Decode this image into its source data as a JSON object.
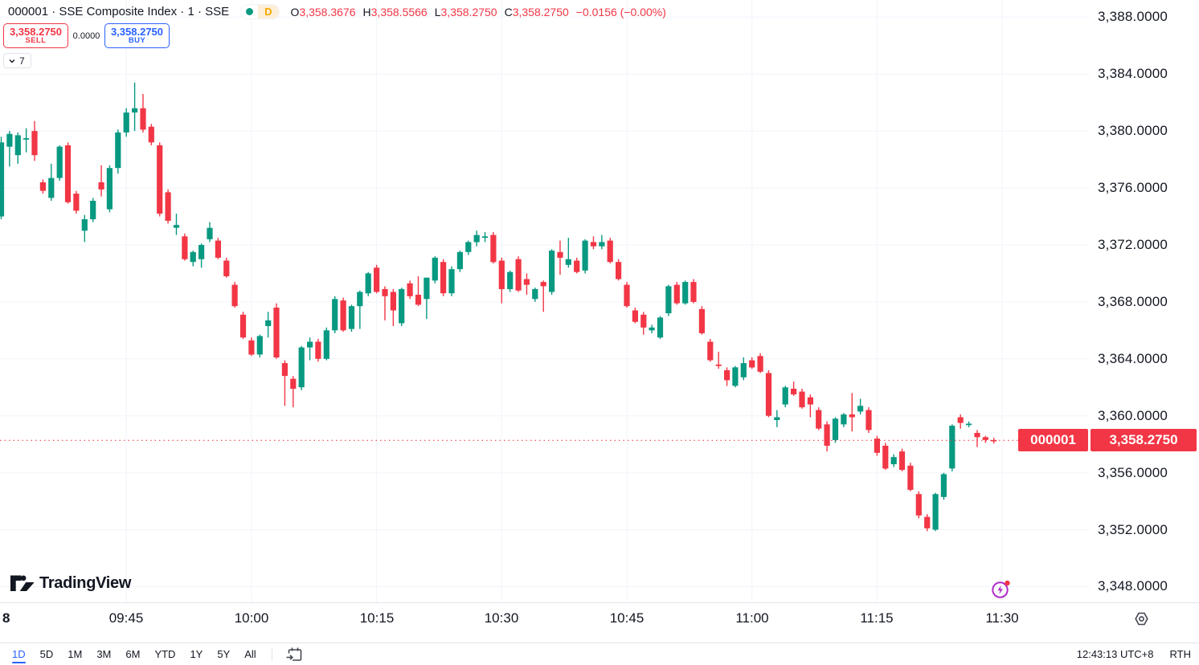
{
  "colors": {
    "up": "#089981",
    "down": "#f23645",
    "grid": "#f0f3fa",
    "accent": "#2962ff",
    "label_bg": "#f23645",
    "badge_orange": "#f7a600"
  },
  "header": {
    "symbol_title": "000001 · SSE Composite Index · 1 · SSE",
    "timeframe_badge": "D",
    "ohlc": {
      "o_label": "O",
      "o_value": "3,358.3676",
      "h_label": "H",
      "h_value": "3,358.5566",
      "l_label": "L",
      "l_value": "3,358.2750",
      "c_label": "C",
      "c_value": "3,358.2750",
      "change": "−0.0156 (−0.00%)"
    },
    "sell_button": {
      "price": "3,358.2750",
      "label": "SELL"
    },
    "spread": "0.0000",
    "buy_button": {
      "price": "3,358.2750",
      "label": "BUY"
    },
    "quantity_dropdown": "7"
  },
  "logo_text": "TradingView",
  "last_price_tag": {
    "symbol": "000001",
    "price": "3,358.2750"
  },
  "time_axis": {
    "date_label": "8"
  },
  "toolbar": {
    "ranges": [
      "1D",
      "5D",
      "1M",
      "3M",
      "6M",
      "YTD",
      "1Y",
      "5Y",
      "All"
    ],
    "active": "1D",
    "clock": "12:43:13 UTC+8",
    "session": "RTH"
  },
  "chart_data": {
    "type": "candlestick",
    "title": "000001 SSE Composite Index, 1 minute",
    "interval": "1m",
    "start_time": "09:30",
    "ylim": [
      3346.9,
      3389.2
    ],
    "grid": true,
    "y_ticks": [
      {
        "v": 3388,
        "label": "3,388.0000"
      },
      {
        "v": 3384,
        "label": "3,384.0000"
      },
      {
        "v": 3380,
        "label": "3,380.0000"
      },
      {
        "v": 3376,
        "label": "3,376.0000"
      },
      {
        "v": 3372,
        "label": "3,372.0000"
      },
      {
        "v": 3368,
        "label": "3,368.0000"
      },
      {
        "v": 3364,
        "label": "3,364.0000"
      },
      {
        "v": 3360,
        "label": "3,360.0000"
      },
      {
        "v": 3356,
        "label": "3,356.0000"
      },
      {
        "v": 3352,
        "label": "3,352.0000"
      },
      {
        "v": 3348,
        "label": "3,348.0000"
      }
    ],
    "x_ticks": [
      {
        "i": 15,
        "label": "09:45"
      },
      {
        "i": 30,
        "label": "10:00"
      },
      {
        "i": 45,
        "label": "10:15"
      },
      {
        "i": 60,
        "label": "10:30"
      },
      {
        "i": 75,
        "label": "10:45"
      },
      {
        "i": 90,
        "label": "11:00"
      },
      {
        "i": 105,
        "label": "11:15"
      },
      {
        "i": 120,
        "label": "11:30"
      }
    ],
    "last_price": 3358.275,
    "candles": [
      [
        3374.0,
        3379.6,
        3373.8,
        3379.2
      ],
      [
        3378.9,
        3380.0,
        3377.5,
        3379.8
      ],
      [
        3378.3,
        3379.9,
        3377.7,
        3379.7
      ],
      [
        3379.4,
        3380.2,
        3378.5,
        3379.5
      ],
      [
        3380.0,
        3380.7,
        3377.9,
        3378.3
      ],
      [
        3376.4,
        3376.6,
        3375.6,
        3375.8
      ],
      [
        3375.3,
        3377.7,
        3375.1,
        3376.7
      ],
      [
        3376.7,
        3379.0,
        3376.5,
        3378.9
      ],
      [
        3379.0,
        3379.2,
        3374.9,
        3375.0
      ],
      [
        3375.6,
        3375.8,
        3374.2,
        3374.4
      ],
      [
        3373.0,
        3374.1,
        3372.2,
        3373.8
      ],
      [
        3373.8,
        3375.3,
        3373.6,
        3375.1
      ],
      [
        3376.4,
        3377.6,
        3375.4,
        3375.9
      ],
      [
        3374.5,
        3377.6,
        3374.3,
        3377.4
      ],
      [
        3377.4,
        3380.1,
        3377.0,
        3379.9
      ],
      [
        3379.9,
        3381.6,
        3379.6,
        3381.3
      ],
      [
        3381.3,
        3383.4,
        3380.0,
        3381.6
      ],
      [
        3381.6,
        3382.6,
        3379.9,
        3380.1
      ],
      [
        3380.3,
        3380.5,
        3379.0,
        3379.2
      ],
      [
        3379.0,
        3379.2,
        3374.0,
        3374.2
      ],
      [
        3375.7,
        3375.9,
        3373.5,
        3373.7
      ],
      [
        3373.2,
        3374.2,
        3372.7,
        3373.4
      ],
      [
        3372.6,
        3372.8,
        3370.9,
        3371.0
      ],
      [
        3370.8,
        3371.6,
        3370.5,
        3371.5
      ],
      [
        3371.0,
        3372.1,
        3370.4,
        3372.0
      ],
      [
        3372.4,
        3373.6,
        3372.2,
        3373.2
      ],
      [
        3372.3,
        3372.5,
        3371.0,
        3371.1
      ],
      [
        3370.9,
        3371.1,
        3369.7,
        3369.8
      ],
      [
        3369.2,
        3369.4,
        3367.6,
        3367.7
      ],
      [
        3367.1,
        3367.3,
        3365.4,
        3365.5
      ],
      [
        3365.3,
        3365.5,
        3364.2,
        3364.3
      ],
      [
        3364.3,
        3365.7,
        3364.1,
        3365.6
      ],
      [
        3366.3,
        3367.3,
        3365.5,
        3366.7
      ],
      [
        3367.6,
        3367.9,
        3364.0,
        3364.1
      ],
      [
        3363.7,
        3363.9,
        3360.7,
        3362.8
      ],
      [
        3362.6,
        3362.8,
        3360.6,
        3361.9
      ],
      [
        3362.0,
        3364.9,
        3361.8,
        3364.8
      ],
      [
        3364.8,
        3365.5,
        3363.9,
        3365.2
      ],
      [
        3365.2,
        3365.4,
        3363.8,
        3364.0
      ],
      [
        3364.0,
        3366.2,
        3363.9,
        3366.0
      ],
      [
        3366.0,
        3368.4,
        3365.8,
        3368.2
      ],
      [
        3368.1,
        3368.3,
        3365.9,
        3366.0
      ],
      [
        3366.1,
        3367.8,
        3365.9,
        3367.7
      ],
      [
        3367.7,
        3368.8,
        3366.1,
        3368.7
      ],
      [
        3368.6,
        3370.1,
        3368.4,
        3370.0
      ],
      [
        3370.4,
        3370.6,
        3368.6,
        3368.7
      ],
      [
        3368.9,
        3369.1,
        3366.7,
        3368.4
      ],
      [
        3368.7,
        3368.9,
        3366.3,
        3367.4
      ],
      [
        3366.5,
        3369.0,
        3366.3,
        3368.9
      ],
      [
        3369.3,
        3369.5,
        3368.2,
        3368.4
      ],
      [
        3368.5,
        3369.8,
        3367.7,
        3367.8
      ],
      [
        3368.2,
        3369.7,
        3366.8,
        3369.7
      ],
      [
        3369.5,
        3371.2,
        3369.3,
        3371.1
      ],
      [
        3370.8,
        3371.0,
        3368.4,
        3368.6
      ],
      [
        3368.6,
        3370.5,
        3368.4,
        3370.3
      ],
      [
        3370.3,
        3371.6,
        3370.1,
        3371.5
      ],
      [
        3371.5,
        3372.3,
        3371.3,
        3372.2
      ],
      [
        3372.2,
        3373.0,
        3371.9,
        3372.7
      ],
      [
        3372.5,
        3372.9,
        3372.2,
        3372.6
      ],
      [
        3372.7,
        3372.9,
        3370.7,
        3370.8
      ],
      [
        3370.9,
        3371.1,
        3367.9,
        3368.9
      ],
      [
        3368.9,
        3370.2,
        3368.7,
        3370.1
      ],
      [
        3371.0,
        3371.2,
        3368.7,
        3368.8
      ],
      [
        3369.6,
        3370.0,
        3368.5,
        3369.2
      ],
      [
        3368.2,
        3369.0,
        3368.0,
        3368.9
      ],
      [
        3369.4,
        3369.5,
        3367.3,
        3369.1
      ],
      [
        3368.7,
        3371.7,
        3368.5,
        3371.6
      ],
      [
        3371.5,
        3372.3,
        3369.9,
        3371.1
      ],
      [
        3370.6,
        3372.5,
        3370.4,
        3371.0
      ],
      [
        3370.9,
        3371.1,
        3370.0,
        3370.1
      ],
      [
        3370.2,
        3372.4,
        3370.0,
        3372.3
      ],
      [
        3372.2,
        3372.6,
        3371.7,
        3371.9
      ],
      [
        3371.9,
        3372.7,
        3371.7,
        3372.2
      ],
      [
        3372.3,
        3372.5,
        3370.7,
        3370.8
      ],
      [
        3370.8,
        3371.0,
        3369.5,
        3369.6
      ],
      [
        3369.2,
        3369.4,
        3367.6,
        3367.7
      ],
      [
        3367.4,
        3367.6,
        3366.5,
        3366.6
      ],
      [
        3367.1,
        3367.3,
        3365.7,
        3366.2
      ],
      [
        3366.0,
        3366.4,
        3365.8,
        3366.2
      ],
      [
        3365.5,
        3367.0,
        3365.4,
        3366.9
      ],
      [
        3367.2,
        3369.2,
        3367.0,
        3369.1
      ],
      [
        3369.2,
        3369.4,
        3367.8,
        3367.9
      ],
      [
        3367.9,
        3369.5,
        3367.8,
        3369.4
      ],
      [
        3369.4,
        3369.6,
        3367.9,
        3368.0
      ],
      [
        3367.5,
        3367.7,
        3365.7,
        3365.8
      ],
      [
        3365.2,
        3365.4,
        3363.8,
        3363.9
      ],
      [
        3363.6,
        3364.5,
        3363.3,
        3363.5
      ],
      [
        3363.2,
        3363.4,
        3362.1,
        3362.5
      ],
      [
        3362.1,
        3363.5,
        3362.0,
        3363.4
      ],
      [
        3362.7,
        3364.1,
        3362.5,
        3363.7
      ],
      [
        3363.9,
        3364.1,
        3363.3,
        3363.4
      ],
      [
        3364.2,
        3364.4,
        3363.0,
        3363.1
      ],
      [
        3363.0,
        3363.2,
        3359.9,
        3360.0
      ],
      [
        3359.7,
        3360.4,
        3359.2,
        3359.9
      ],
      [
        3360.8,
        3362.1,
        3360.6,
        3362.0
      ],
      [
        3361.9,
        3362.4,
        3361.4,
        3361.5
      ],
      [
        3361.7,
        3361.9,
        3360.5,
        3360.6
      ],
      [
        3361.3,
        3361.5,
        3359.9,
        3360.8
      ],
      [
        3360.4,
        3360.6,
        3359.0,
        3359.1
      ],
      [
        3359.4,
        3359.6,
        3357.5,
        3357.9
      ],
      [
        3358.3,
        3359.9,
        3358.1,
        3359.8
      ],
      [
        3359.4,
        3360.2,
        3359.2,
        3360.1
      ],
      [
        3360.1,
        3361.6,
        3358.9,
        3359.9
      ],
      [
        3360.3,
        3361.2,
        3360.1,
        3360.7
      ],
      [
        3360.4,
        3360.6,
        3358.8,
        3359.0
      ],
      [
        3358.4,
        3358.6,
        3357.2,
        3357.4
      ],
      [
        3357.9,
        3358.1,
        3356.2,
        3356.3
      ],
      [
        3356.6,
        3357.3,
        3356.4,
        3357.1
      ],
      [
        3357.5,
        3357.7,
        3356.1,
        3356.2
      ],
      [
        3356.5,
        3356.7,
        3354.7,
        3354.8
      ],
      [
        3354.5,
        3354.7,
        3352.8,
        3353.0
      ],
      [
        3352.9,
        3353.1,
        3351.9,
        3352.1
      ],
      [
        3352.0,
        3354.6,
        3351.9,
        3354.5
      ],
      [
        3354.3,
        3356.0,
        3354.1,
        3355.9
      ],
      [
        3356.3,
        3359.4,
        3356.1,
        3359.3
      ],
      [
        3359.9,
        3360.1,
        3359.1,
        3359.5
      ],
      [
        3359.35,
        3359.6,
        3359.2,
        3359.45
      ],
      [
        3358.8,
        3359.0,
        3357.8,
        3358.5
      ],
      [
        3358.5,
        3358.6,
        3358.1,
        3358.3
      ],
      [
        3358.3,
        3358.45,
        3358.05,
        3358.275
      ]
    ]
  }
}
